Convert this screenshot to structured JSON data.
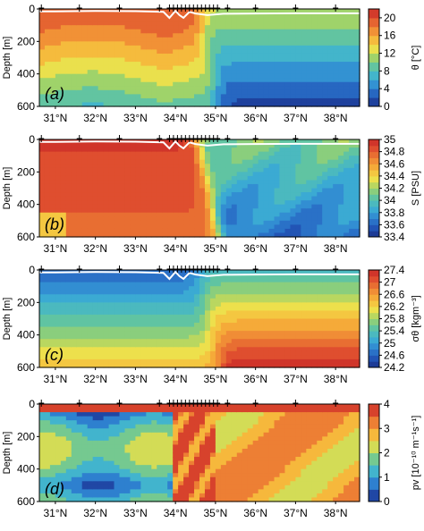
{
  "chart_data": [
    {
      "type": "heatmap",
      "panel_label": "(a)",
      "variable": "θ",
      "ylabel": "Depth [m]",
      "colorbar_label": "θ [°C]",
      "colorbar_ticks": [
        "20",
        "16",
        "12",
        "8",
        "4",
        "0"
      ],
      "colorbar_range": [
        0,
        22
      ],
      "x_ticks": [
        "31°N",
        "32°N",
        "33°N",
        "34°N",
        "35°N",
        "36°N",
        "37°N",
        "38°N"
      ],
      "x_range": [
        30.6,
        38.6
      ],
      "y_ticks": [
        "0",
        "200",
        "400",
        "600"
      ],
      "y_range": [
        0,
        600
      ],
      "colors": [
        "#1e3a8a",
        "#2b5fc1",
        "#3b8fd9",
        "#4fb8c9",
        "#6cc7a0",
        "#f2e84a",
        "#f7b73c",
        "#ef8a3a",
        "#e25a32",
        "#cc2e2b"
      ]
    },
    {
      "type": "heatmap",
      "panel_label": "(b)",
      "variable": "S",
      "ylabel": "Depth [m]",
      "colorbar_label": "S [PSU]",
      "colorbar_ticks": [
        "35",
        "34.8",
        "34.6",
        "34.4",
        "34.2",
        "34",
        "33.8",
        "33.6",
        "33.4"
      ],
      "colorbar_range": [
        33.4,
        35
      ],
      "x_ticks": [
        "31°N",
        "32°N",
        "33°N",
        "34°N",
        "35°N",
        "36°N",
        "37°N",
        "38°N"
      ],
      "x_range": [
        30.6,
        38.6
      ],
      "y_ticks": [
        "0",
        "200",
        "400",
        "600"
      ],
      "y_range": [
        0,
        600
      ]
    },
    {
      "type": "heatmap",
      "panel_label": "(c)",
      "variable": "σθ",
      "ylabel": "Depth [m]",
      "colorbar_label": "σθ [kgm⁻³]",
      "colorbar_ticks": [
        "27.4",
        "27",
        "26.6",
        "26.2",
        "25.8",
        "25.4",
        "25",
        "24.6",
        "24.2"
      ],
      "colorbar_range": [
        24.2,
        27.4
      ],
      "x_ticks": [
        "31°N",
        "32°N",
        "33°N",
        "34°N",
        "35°N",
        "36°N",
        "37°N",
        "38°N"
      ],
      "x_range": [
        30.6,
        38.6
      ],
      "y_ticks": [
        "0",
        "200",
        "400",
        "600"
      ],
      "y_range": [
        0,
        600
      ]
    },
    {
      "type": "heatmap",
      "panel_label": "(d)",
      "variable": "pv",
      "ylabel": "Depth [m]",
      "colorbar_label": "pv [10⁻¹⁰ m⁻¹s⁻¹]",
      "colorbar_ticks": [
        "4",
        "3",
        "2",
        "1",
        "0"
      ],
      "colorbar_range": [
        0,
        4
      ],
      "x_ticks": [
        "31°N",
        "32°N",
        "33°N",
        "34°N",
        "35°N",
        "36°N",
        "37°N",
        "38°N"
      ],
      "x_range": [
        30.6,
        38.6
      ],
      "y_ticks": [
        "0",
        "200",
        "400",
        "600"
      ],
      "y_range": [
        0,
        600
      ]
    }
  ],
  "stations_lat": [
    30.65,
    31.6,
    32.6,
    33.6,
    33.85,
    33.95,
    34.05,
    34.15,
    34.25,
    34.35,
    34.45,
    34.55,
    34.65,
    34.75,
    34.85,
    34.95,
    35.05,
    35.3,
    36.0,
    37.0,
    38.0
  ],
  "mixed_layer": {
    "lat": [
      30.6,
      31.0,
      32.0,
      33.0,
      33.7,
      33.85,
      34.0,
      34.1,
      34.2,
      34.35,
      34.5,
      34.8,
      35.2,
      36.0,
      37.0,
      38.0,
      38.6
    ],
    "depth": [
      15,
      15,
      12,
      14,
      18,
      55,
      12,
      38,
      55,
      18,
      28,
      38,
      30,
      28,
      27,
      27,
      27
    ]
  }
}
